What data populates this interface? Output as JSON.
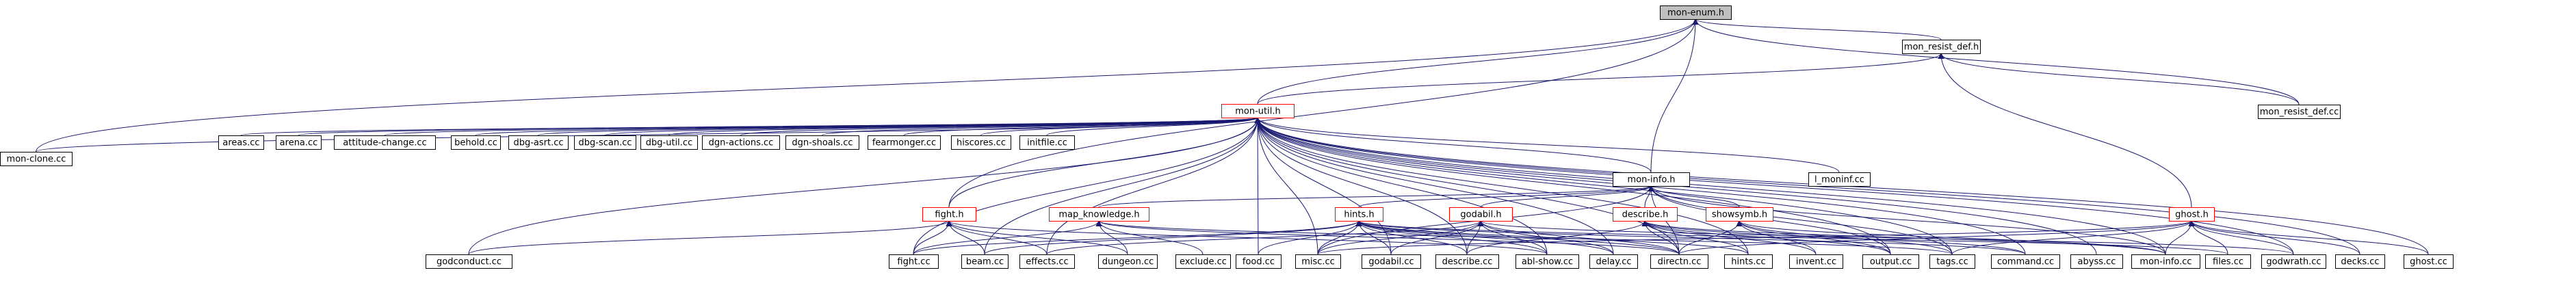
{
  "graph": {
    "root": "mon-enum.h",
    "nodes": [
      {
        "id": "mon_enum",
        "label": "mon-enum.h",
        "style": "root"
      },
      {
        "id": "mon_resist_def_h",
        "label": "mon_resist_def.h",
        "style": "normal"
      },
      {
        "id": "mon_util",
        "label": "mon-util.h",
        "style": "red"
      },
      {
        "id": "mon_resist_def_cc",
        "label": "mon_resist_def.cc",
        "style": "normal"
      },
      {
        "id": "mon_clone",
        "label": "mon-clone.cc",
        "style": "normal"
      },
      {
        "id": "areas",
        "label": "areas.cc",
        "style": "normal"
      },
      {
        "id": "arena",
        "label": "arena.cc",
        "style": "normal"
      },
      {
        "id": "attitude_change",
        "label": "attitude-change.cc",
        "style": "normal"
      },
      {
        "id": "behold",
        "label": "behold.cc",
        "style": "normal"
      },
      {
        "id": "dbg_asrt",
        "label": "dbg-asrt.cc",
        "style": "normal"
      },
      {
        "id": "dbg_scan",
        "label": "dbg-scan.cc",
        "style": "normal"
      },
      {
        "id": "dbg_util",
        "label": "dbg-util.cc",
        "style": "normal"
      },
      {
        "id": "dgn_actions",
        "label": "dgn-actions.cc",
        "style": "normal"
      },
      {
        "id": "dgn_shoals",
        "label": "dgn-shoals.cc",
        "style": "normal"
      },
      {
        "id": "fearmonger",
        "label": "fearmonger.cc",
        "style": "normal"
      },
      {
        "id": "hiscores",
        "label": "hiscores.cc",
        "style": "normal"
      },
      {
        "id": "initfile",
        "label": "initfile.cc",
        "style": "normal"
      },
      {
        "id": "mon_info_h",
        "label": "mon-info.h",
        "style": "normal"
      },
      {
        "id": "l_moninf",
        "label": "l_moninf.cc",
        "style": "normal"
      },
      {
        "id": "fight_h",
        "label": "fight.h",
        "style": "red"
      },
      {
        "id": "map_knowledge",
        "label": "map_knowledge.h",
        "style": "red"
      },
      {
        "id": "hints_h",
        "label": "hints.h",
        "style": "red"
      },
      {
        "id": "godabil_h",
        "label": "godabil.h",
        "style": "red"
      },
      {
        "id": "describe_h",
        "label": "describe.h",
        "style": "red"
      },
      {
        "id": "showsymb",
        "label": "showsymb.h",
        "style": "red"
      },
      {
        "id": "ghost_h",
        "label": "ghost.h",
        "style": "red"
      },
      {
        "id": "godconduct",
        "label": "godconduct.cc",
        "style": "normal"
      },
      {
        "id": "fight_cc",
        "label": "fight.cc",
        "style": "normal"
      },
      {
        "id": "beam",
        "label": "beam.cc",
        "style": "normal"
      },
      {
        "id": "effects",
        "label": "effects.cc",
        "style": "normal"
      },
      {
        "id": "dungeon",
        "label": "dungeon.cc",
        "style": "normal"
      },
      {
        "id": "exclude",
        "label": "exclude.cc",
        "style": "normal"
      },
      {
        "id": "food",
        "label": "food.cc",
        "style": "normal"
      },
      {
        "id": "misc",
        "label": "misc.cc",
        "style": "normal"
      },
      {
        "id": "godabil_cc",
        "label": "godabil.cc",
        "style": "normal"
      },
      {
        "id": "describe_cc",
        "label": "describe.cc",
        "style": "normal"
      },
      {
        "id": "abl_show",
        "label": "abl-show.cc",
        "style": "normal"
      },
      {
        "id": "delay",
        "label": "delay.cc",
        "style": "normal"
      },
      {
        "id": "directn",
        "label": "directn.cc",
        "style": "normal"
      },
      {
        "id": "hints_cc",
        "label": "hints.cc",
        "style": "normal"
      },
      {
        "id": "invent",
        "label": "invent.cc",
        "style": "normal"
      },
      {
        "id": "output",
        "label": "output.cc",
        "style": "normal"
      },
      {
        "id": "tags",
        "label": "tags.cc",
        "style": "normal"
      },
      {
        "id": "command",
        "label": "command.cc",
        "style": "normal"
      },
      {
        "id": "abyss",
        "label": "abyss.cc",
        "style": "normal"
      },
      {
        "id": "mon_info_cc",
        "label": "mon-info.cc",
        "style": "normal"
      },
      {
        "id": "files",
        "label": "files.cc",
        "style": "normal"
      },
      {
        "id": "godwrath",
        "label": "godwrath.cc",
        "style": "normal"
      },
      {
        "id": "decks",
        "label": "decks.cc",
        "style": "normal"
      },
      {
        "id": "ghost_cc",
        "label": "ghost.cc",
        "style": "normal"
      }
    ],
    "edges": [
      [
        "mon_resist_def_h",
        "mon_enum"
      ],
      [
        "mon_util",
        "mon_enum"
      ],
      [
        "mon_clone",
        "mon_enum"
      ],
      [
        "mon_info_h",
        "mon_enum"
      ],
      [
        "fight_h",
        "mon_enum"
      ],
      [
        "mon_resist_def_cc",
        "mon_enum"
      ],
      [
        "mon_resist_def_cc",
        "mon_resist_def_h"
      ],
      [
        "mon_util",
        "mon_resist_def_h"
      ],
      [
        "ghost_h",
        "mon_resist_def_h"
      ],
      [
        "mon_clone",
        "mon_util"
      ],
      [
        "areas",
        "mon_util"
      ],
      [
        "arena",
        "mon_util"
      ],
      [
        "attitude_change",
        "mon_util"
      ],
      [
        "behold",
        "mon_util"
      ],
      [
        "dbg_asrt",
        "mon_util"
      ],
      [
        "dbg_scan",
        "mon_util"
      ],
      [
        "dbg_util",
        "mon_util"
      ],
      [
        "dgn_actions",
        "mon_util"
      ],
      [
        "dgn_shoals",
        "mon_util"
      ],
      [
        "fearmonger",
        "mon_util"
      ],
      [
        "hiscores",
        "mon_util"
      ],
      [
        "initfile",
        "mon_util"
      ],
      [
        "mon_info_h",
        "mon_util"
      ],
      [
        "l_moninf",
        "mon_util"
      ],
      [
        "fight_h",
        "mon_util"
      ],
      [
        "godconduct",
        "mon_util"
      ],
      [
        "fight_cc",
        "mon_util"
      ],
      [
        "beam",
        "mon_util"
      ],
      [
        "effects",
        "mon_util"
      ],
      [
        "food",
        "mon_util"
      ],
      [
        "misc",
        "mon_util"
      ],
      [
        "godabil_cc",
        "mon_util"
      ],
      [
        "describe_cc",
        "mon_util"
      ],
      [
        "abl_show",
        "mon_util"
      ],
      [
        "delay",
        "mon_util"
      ],
      [
        "directn",
        "mon_util"
      ],
      [
        "hints_cc",
        "mon_util"
      ],
      [
        "output",
        "mon_util"
      ],
      [
        "tags",
        "mon_util"
      ],
      [
        "command",
        "mon_util"
      ],
      [
        "abyss",
        "mon_util"
      ],
      [
        "mon_info_cc",
        "mon_util"
      ],
      [
        "decks",
        "mon_util"
      ],
      [
        "ghost_cc",
        "mon_util"
      ],
      [
        "godwrath",
        "mon_util"
      ],
      [
        "map_knowledge",
        "mon_info_h"
      ],
      [
        "hints_h",
        "mon_info_h"
      ],
      [
        "godabil_h",
        "mon_info_h"
      ],
      [
        "describe_h",
        "mon_info_h"
      ],
      [
        "showsymb",
        "mon_info_h"
      ],
      [
        "directn",
        "mon_info_h"
      ],
      [
        "mon_info_cc",
        "mon_info_h"
      ],
      [
        "output",
        "mon_info_h"
      ],
      [
        "tags",
        "mon_info_h"
      ],
      [
        "misc",
        "mon_info_h"
      ],
      [
        "godconduct",
        "fight_h"
      ],
      [
        "fight_cc",
        "fight_h"
      ],
      [
        "beam",
        "fight_h"
      ],
      [
        "effects",
        "fight_h"
      ],
      [
        "dungeon",
        "fight_h"
      ],
      [
        "abl_show",
        "fight_h"
      ],
      [
        "fight_cc",
        "map_knowledge"
      ],
      [
        "dungeon",
        "map_knowledge"
      ],
      [
        "exclude",
        "map_knowledge"
      ],
      [
        "directn",
        "map_knowledge"
      ],
      [
        "tags",
        "map_knowledge"
      ],
      [
        "fight_cc",
        "hints_h"
      ],
      [
        "beam",
        "hints_h"
      ],
      [
        "food",
        "hints_h"
      ],
      [
        "misc",
        "hints_h"
      ],
      [
        "godabil_cc",
        "hints_h"
      ],
      [
        "describe_cc",
        "hints_h"
      ],
      [
        "abl_show",
        "hints_h"
      ],
      [
        "delay",
        "hints_h"
      ],
      [
        "directn",
        "hints_h"
      ],
      [
        "hints_cc",
        "hints_h"
      ],
      [
        "command",
        "hints_h"
      ],
      [
        "files",
        "hints_h"
      ],
      [
        "effects",
        "godabil_h"
      ],
      [
        "misc",
        "godabil_h"
      ],
      [
        "godabil_cc",
        "godabil_h"
      ],
      [
        "describe_cc",
        "godabil_h"
      ],
      [
        "abl_show",
        "godabil_h"
      ],
      [
        "delay",
        "godabil_h"
      ],
      [
        "directn",
        "godabil_h"
      ],
      [
        "godwrath",
        "godabil_h"
      ],
      [
        "describe_cc",
        "describe_h"
      ],
      [
        "directn",
        "describe_h"
      ],
      [
        "hints_cc",
        "describe_h"
      ],
      [
        "invent",
        "describe_h"
      ],
      [
        "output",
        "describe_h"
      ],
      [
        "command",
        "describe_h"
      ],
      [
        "mon_info_cc",
        "describe_h"
      ],
      [
        "directn",
        "showsymb"
      ],
      [
        "invent",
        "showsymb"
      ],
      [
        "output",
        "showsymb"
      ],
      [
        "tags",
        "showsymb"
      ],
      [
        "mon_info_cc",
        "showsymb"
      ],
      [
        "misc",
        "ghost_h"
      ],
      [
        "directn",
        "ghost_h"
      ],
      [
        "tags",
        "ghost_h"
      ],
      [
        "mon_info_cc",
        "ghost_h"
      ],
      [
        "files",
        "ghost_h"
      ],
      [
        "godwrath",
        "ghost_h"
      ],
      [
        "decks",
        "ghost_h"
      ],
      [
        "ghost_cc",
        "ghost_h"
      ]
    ]
  }
}
